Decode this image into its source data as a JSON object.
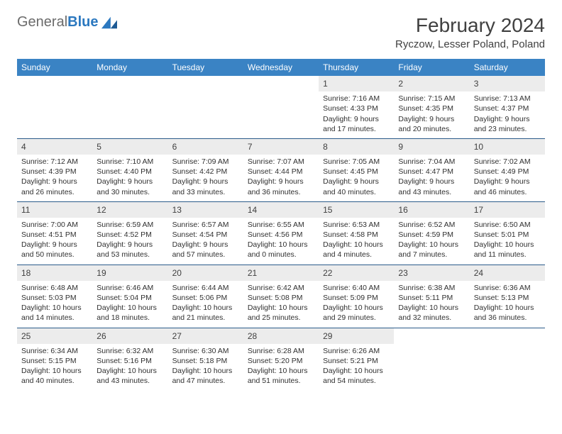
{
  "logo": {
    "text1": "General",
    "text2": "Blue"
  },
  "title": "February 2024",
  "location": "Ryczow, Lesser Poland, Poland",
  "colors": {
    "header_bg": "#3a83c4",
    "header_text": "#ffffff",
    "daynum_bg": "#ececec",
    "border": "#2b5b8a",
    "text": "#303030",
    "logo_gray": "#6b6b6b",
    "logo_blue": "#2b78bf"
  },
  "day_names": [
    "Sunday",
    "Monday",
    "Tuesday",
    "Wednesday",
    "Thursday",
    "Friday",
    "Saturday"
  ],
  "weeks": [
    [
      null,
      null,
      null,
      null,
      {
        "n": "1",
        "sr": "Sunrise: 7:16 AM",
        "ss": "Sunset: 4:33 PM",
        "dl": "Daylight: 9 hours and 17 minutes."
      },
      {
        "n": "2",
        "sr": "Sunrise: 7:15 AM",
        "ss": "Sunset: 4:35 PM",
        "dl": "Daylight: 9 hours and 20 minutes."
      },
      {
        "n": "3",
        "sr": "Sunrise: 7:13 AM",
        "ss": "Sunset: 4:37 PM",
        "dl": "Daylight: 9 hours and 23 minutes."
      }
    ],
    [
      {
        "n": "4",
        "sr": "Sunrise: 7:12 AM",
        "ss": "Sunset: 4:39 PM",
        "dl": "Daylight: 9 hours and 26 minutes."
      },
      {
        "n": "5",
        "sr": "Sunrise: 7:10 AM",
        "ss": "Sunset: 4:40 PM",
        "dl": "Daylight: 9 hours and 30 minutes."
      },
      {
        "n": "6",
        "sr": "Sunrise: 7:09 AM",
        "ss": "Sunset: 4:42 PM",
        "dl": "Daylight: 9 hours and 33 minutes."
      },
      {
        "n": "7",
        "sr": "Sunrise: 7:07 AM",
        "ss": "Sunset: 4:44 PM",
        "dl": "Daylight: 9 hours and 36 minutes."
      },
      {
        "n": "8",
        "sr": "Sunrise: 7:05 AM",
        "ss": "Sunset: 4:45 PM",
        "dl": "Daylight: 9 hours and 40 minutes."
      },
      {
        "n": "9",
        "sr": "Sunrise: 7:04 AM",
        "ss": "Sunset: 4:47 PM",
        "dl": "Daylight: 9 hours and 43 minutes."
      },
      {
        "n": "10",
        "sr": "Sunrise: 7:02 AM",
        "ss": "Sunset: 4:49 PM",
        "dl": "Daylight: 9 hours and 46 minutes."
      }
    ],
    [
      {
        "n": "11",
        "sr": "Sunrise: 7:00 AM",
        "ss": "Sunset: 4:51 PM",
        "dl": "Daylight: 9 hours and 50 minutes."
      },
      {
        "n": "12",
        "sr": "Sunrise: 6:59 AM",
        "ss": "Sunset: 4:52 PM",
        "dl": "Daylight: 9 hours and 53 minutes."
      },
      {
        "n": "13",
        "sr": "Sunrise: 6:57 AM",
        "ss": "Sunset: 4:54 PM",
        "dl": "Daylight: 9 hours and 57 minutes."
      },
      {
        "n": "14",
        "sr": "Sunrise: 6:55 AM",
        "ss": "Sunset: 4:56 PM",
        "dl": "Daylight: 10 hours and 0 minutes."
      },
      {
        "n": "15",
        "sr": "Sunrise: 6:53 AM",
        "ss": "Sunset: 4:58 PM",
        "dl": "Daylight: 10 hours and 4 minutes."
      },
      {
        "n": "16",
        "sr": "Sunrise: 6:52 AM",
        "ss": "Sunset: 4:59 PM",
        "dl": "Daylight: 10 hours and 7 minutes."
      },
      {
        "n": "17",
        "sr": "Sunrise: 6:50 AM",
        "ss": "Sunset: 5:01 PM",
        "dl": "Daylight: 10 hours and 11 minutes."
      }
    ],
    [
      {
        "n": "18",
        "sr": "Sunrise: 6:48 AM",
        "ss": "Sunset: 5:03 PM",
        "dl": "Daylight: 10 hours and 14 minutes."
      },
      {
        "n": "19",
        "sr": "Sunrise: 6:46 AM",
        "ss": "Sunset: 5:04 PM",
        "dl": "Daylight: 10 hours and 18 minutes."
      },
      {
        "n": "20",
        "sr": "Sunrise: 6:44 AM",
        "ss": "Sunset: 5:06 PM",
        "dl": "Daylight: 10 hours and 21 minutes."
      },
      {
        "n": "21",
        "sr": "Sunrise: 6:42 AM",
        "ss": "Sunset: 5:08 PM",
        "dl": "Daylight: 10 hours and 25 minutes."
      },
      {
        "n": "22",
        "sr": "Sunrise: 6:40 AM",
        "ss": "Sunset: 5:09 PM",
        "dl": "Daylight: 10 hours and 29 minutes."
      },
      {
        "n": "23",
        "sr": "Sunrise: 6:38 AM",
        "ss": "Sunset: 5:11 PM",
        "dl": "Daylight: 10 hours and 32 minutes."
      },
      {
        "n": "24",
        "sr": "Sunrise: 6:36 AM",
        "ss": "Sunset: 5:13 PM",
        "dl": "Daylight: 10 hours and 36 minutes."
      }
    ],
    [
      {
        "n": "25",
        "sr": "Sunrise: 6:34 AM",
        "ss": "Sunset: 5:15 PM",
        "dl": "Daylight: 10 hours and 40 minutes."
      },
      {
        "n": "26",
        "sr": "Sunrise: 6:32 AM",
        "ss": "Sunset: 5:16 PM",
        "dl": "Daylight: 10 hours and 43 minutes."
      },
      {
        "n": "27",
        "sr": "Sunrise: 6:30 AM",
        "ss": "Sunset: 5:18 PM",
        "dl": "Daylight: 10 hours and 47 minutes."
      },
      {
        "n": "28",
        "sr": "Sunrise: 6:28 AM",
        "ss": "Sunset: 5:20 PM",
        "dl": "Daylight: 10 hours and 51 minutes."
      },
      {
        "n": "29",
        "sr": "Sunrise: 6:26 AM",
        "ss": "Sunset: 5:21 PM",
        "dl": "Daylight: 10 hours and 54 minutes."
      },
      null,
      null
    ]
  ]
}
